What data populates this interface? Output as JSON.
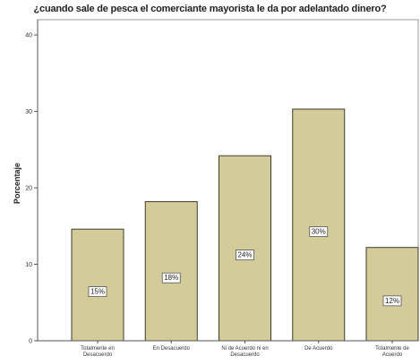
{
  "chart_data": {
    "type": "bar",
    "title": "¿cuando sale de pesca el comerciante mayorista le da por adelantado dinero?",
    "xlabel": "",
    "ylabel": "Porcentaje",
    "ylim": [
      0,
      42
    ],
    "yticks": [
      0,
      10,
      20,
      30,
      40
    ],
    "grid": false,
    "categories": [
      [
        "Totalmente en",
        "Desacuerdo"
      ],
      [
        "En Desacuerdo"
      ],
      [
        "Ni de Acuerdo ni en",
        "Desacuerdo"
      ],
      [
        "De Acuerdo"
      ],
      [
        "Totalmente de",
        "Acuerdo"
      ]
    ],
    "values": [
      14.6,
      18.2,
      24.2,
      30.3,
      12.2
    ],
    "data_labels": [
      "15%",
      "18%",
      "24%",
      "30%",
      "12%"
    ],
    "colors": {
      "bar": "#d4cb9a",
      "bar_border": "#3c3c2a",
      "axis": "#555555",
      "frame": "#9a9a9a"
    }
  }
}
